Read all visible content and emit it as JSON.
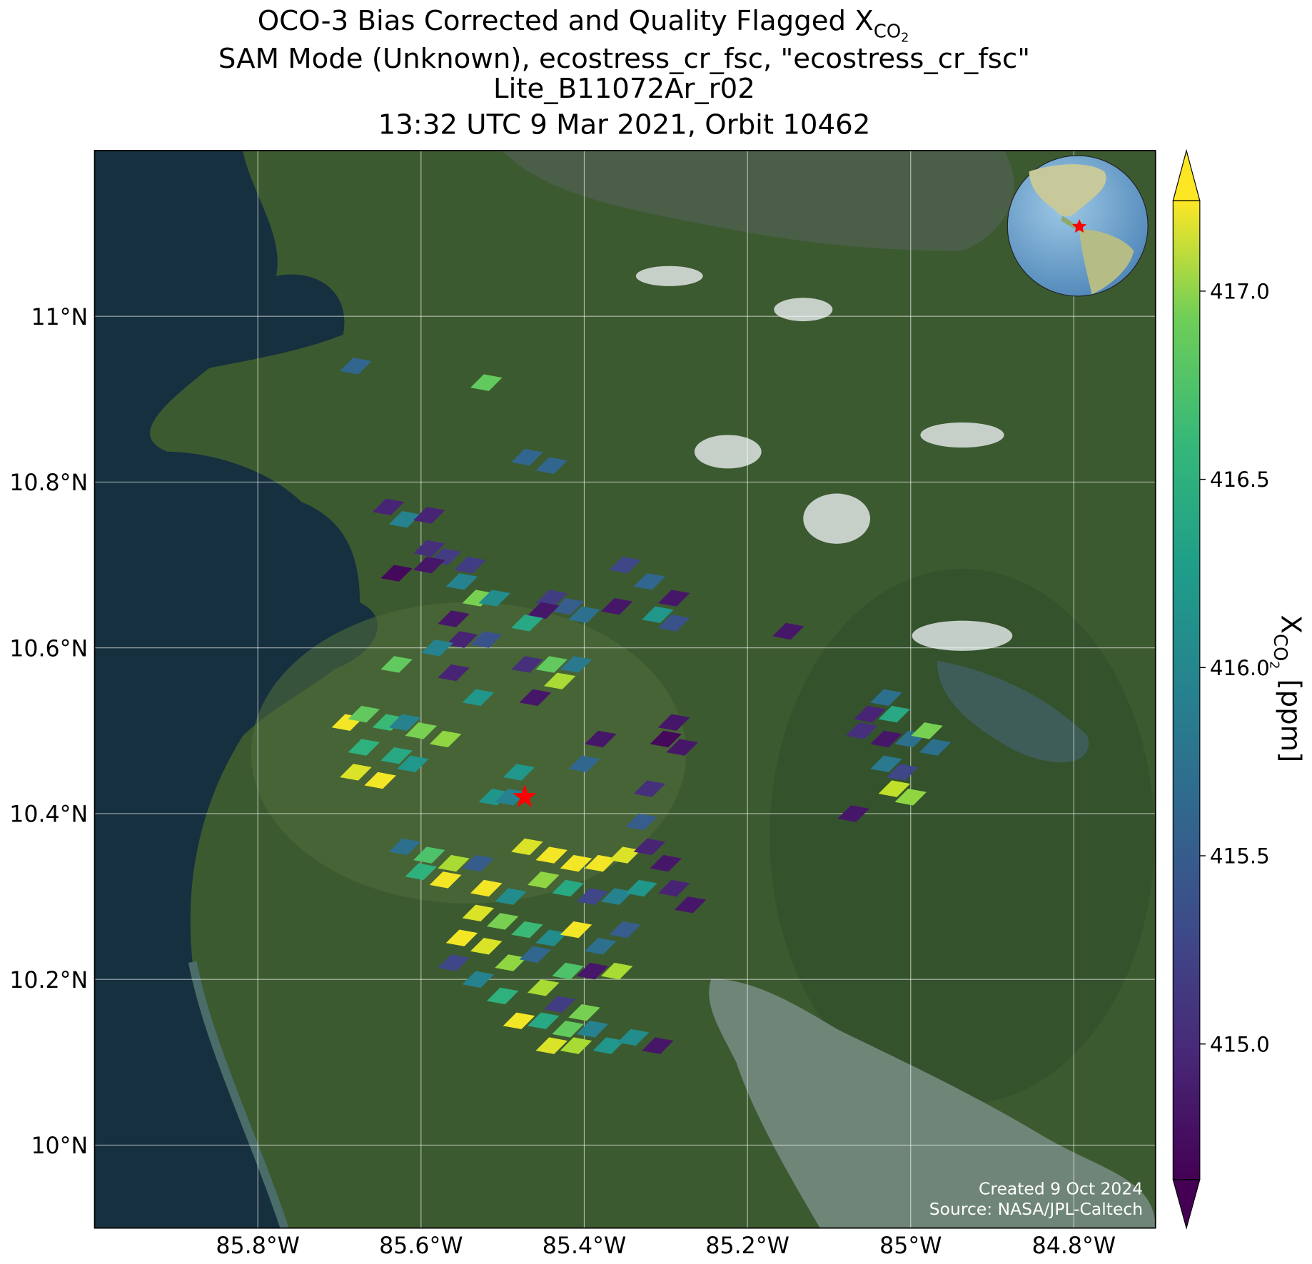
{
  "chart_data": {
    "type": "map",
    "title": {
      "main": "OCO-3 Bias Corrected and Quality Flagged X",
      "subscript": "CO",
      "subscript_digit": "2"
    },
    "subtitle_lines": [
      "SAM Mode (Unknown), ecostress_cr_fsc, \"ecostress_cr_fsc\"",
      "Lite_B11072Ar_r02",
      "13:32 UTC 9 Mar 2021, Orbit 10462"
    ],
    "xlim": [
      -86.0,
      -84.7
    ],
    "ylim": [
      9.9,
      11.2
    ],
    "xticks": [
      {
        "value": -85.8,
        "label": "85.8°W"
      },
      {
        "value": -85.6,
        "label": "85.6°W"
      },
      {
        "value": -85.4,
        "label": "85.4°W"
      },
      {
        "value": -85.2,
        "label": "85.2°W"
      },
      {
        "value": -85.0,
        "label": "85°W"
      },
      {
        "value": -84.8,
        "label": "84.8°W"
      }
    ],
    "yticks": [
      {
        "value": 10.0,
        "label": "10°N"
      },
      {
        "value": 10.2,
        "label": "10.2°N"
      },
      {
        "value": 10.4,
        "label": "10.4°N"
      },
      {
        "value": 10.6,
        "label": "10.6°N"
      },
      {
        "value": 10.8,
        "label": "10.8°N"
      },
      {
        "value": 11.0,
        "label": "11°N"
      }
    ],
    "grid": true,
    "target": {
      "lon": -85.473,
      "lat": 10.42,
      "color": "#ff0000"
    },
    "soundings": {
      "lon": [
        -85.68,
        -85.52,
        -85.47,
        -85.44,
        -85.64,
        -85.62,
        -85.59,
        -85.59,
        -85.57,
        -85.59,
        -85.63,
        -85.55,
        -85.53,
        -85.51,
        -85.54,
        -85.44,
        -85.42,
        -85.45,
        -85.4,
        -85.36,
        -85.35,
        -85.32,
        -85.31,
        -85.29,
        -85.29,
        -85.47,
        -85.56,
        -85.55,
        -85.52,
        -85.58,
        -85.15,
        -85.63,
        -85.56,
        -85.47,
        -85.44,
        -85.43,
        -85.41,
        -85.46,
        -85.53,
        -85.69,
        -85.67,
        -85.64,
        -85.67,
        -85.63,
        -85.68,
        -85.65,
        -85.61,
        -85.62,
        -85.6,
        -85.57,
        -85.29,
        -85.3,
        -85.28,
        -85.38,
        -85.4,
        -85.32,
        -85.48,
        -85.51,
        -85.49,
        -85.03,
        -85.05,
        -85.02,
        -85.06,
        -85.03,
        -85.0,
        -84.98,
        -84.97,
        -85.03,
        -85.01,
        -85.02,
        -85.0,
        -85.07,
        -85.62,
        -85.59,
        -85.56,
        -85.53,
        -85.6,
        -85.57,
        -85.52,
        -85.49,
        -85.47,
        -85.44,
        -85.41,
        -85.38,
        -85.35,
        -85.45,
        -85.42,
        -85.39,
        -85.36,
        -85.33,
        -85.33,
        -85.32,
        -85.3,
        -85.27,
        -85.29,
        -85.53,
        -85.5,
        -85.47,
        -85.44,
        -85.41,
        -85.38,
        -85.35,
        -85.55,
        -85.52,
        -85.49,
        -85.46,
        -85.42,
        -85.39,
        -85.36,
        -85.56,
        -85.53,
        -85.5,
        -85.45,
        -85.43,
        -85.48,
        -85.45,
        -85.42,
        -85.39,
        -85.4,
        -85.44,
        -85.41,
        -85.37,
        -85.34,
        -85.31
      ],
      "lat": [
        10.94,
        10.92,
        10.83,
        10.82,
        10.77,
        10.755,
        10.76,
        10.72,
        10.71,
        10.7,
        10.69,
        10.68,
        10.66,
        10.66,
        10.7,
        10.66,
        10.65,
        10.645,
        10.64,
        10.65,
        10.7,
        10.68,
        10.64,
        10.66,
        10.63,
        10.63,
        10.635,
        10.61,
        10.61,
        10.6,
        10.62,
        10.58,
        10.57,
        10.58,
        10.58,
        10.56,
        10.58,
        10.54,
        10.54,
        10.51,
        10.52,
        10.51,
        10.48,
        10.47,
        10.45,
        10.44,
        10.46,
        10.51,
        10.5,
        10.49,
        10.51,
        10.49,
        10.48,
        10.49,
        10.46,
        10.43,
        10.45,
        10.42,
        10.42,
        10.54,
        10.52,
        10.52,
        10.5,
        10.49,
        10.49,
        10.5,
        10.48,
        10.46,
        10.45,
        10.43,
        10.42,
        10.4,
        10.36,
        10.35,
        10.34,
        10.34,
        10.33,
        10.32,
        10.31,
        10.3,
        10.36,
        10.35,
        10.34,
        10.34,
        10.35,
        10.32,
        10.31,
        10.3,
        10.3,
        10.31,
        10.39,
        10.36,
        10.34,
        10.29,
        10.31,
        10.28,
        10.27,
        10.26,
        10.25,
        10.26,
        10.24,
        10.26,
        10.25,
        10.24,
        10.22,
        10.23,
        10.21,
        10.21,
        10.21,
        10.22,
        10.2,
        10.18,
        10.19,
        10.17,
        10.15,
        10.15,
        10.14,
        10.14,
        10.16,
        10.12,
        10.12,
        10.12,
        10.13,
        10.12
      ],
      "values": [
        415.5,
        416.6,
        415.5,
        415.5,
        414.9,
        415.8,
        414.9,
        415.0,
        415.1,
        414.8,
        414.7,
        415.8,
        416.7,
        415.9,
        415.1,
        415.1,
        415.4,
        414.8,
        415.6,
        414.8,
        415.2,
        415.5,
        416.0,
        414.8,
        415.3,
        416.2,
        414.8,
        414.9,
        415.3,
        415.8,
        414.8,
        416.6,
        414.9,
        415.0,
        416.6,
        416.9,
        415.7,
        414.8,
        416.0,
        417.2,
        416.6,
        416.4,
        416.3,
        416.2,
        417.1,
        417.2,
        416.0,
        415.8,
        416.7,
        416.8,
        414.8,
        414.7,
        414.8,
        414.8,
        415.5,
        415.0,
        416.0,
        416.0,
        415.8,
        415.6,
        414.9,
        416.2,
        415.0,
        414.8,
        415.6,
        416.7,
        415.6,
        415.7,
        415.2,
        417.0,
        416.8,
        414.8,
        415.6,
        416.5,
        416.9,
        415.4,
        416.3,
        417.2,
        417.2,
        415.9,
        417.1,
        417.2,
        417.2,
        417.2,
        417.1,
        416.8,
        416.2,
        415.2,
        415.8,
        416.0,
        415.4,
        414.9,
        414.8,
        414.8,
        414.9,
        417.1,
        416.7,
        416.4,
        415.9,
        417.2,
        415.6,
        415.4,
        417.2,
        417.1,
        416.8,
        415.5,
        416.5,
        414.8,
        416.9,
        415.2,
        415.8,
        416.3,
        416.9,
        415.1,
        417.2,
        416.2,
        416.6,
        415.8,
        416.7,
        417.1,
        416.9,
        416.0,
        415.9,
        414.8
      ]
    },
    "colorbar": {
      "label": "X",
      "label_subscript": "CO",
      "label_subscript_digit": "2",
      "label_unit": "[ppm]",
      "clim": [
        414.64,
        417.24
      ],
      "ticks": [
        {
          "value": 415.0,
          "label": "415.0"
        },
        {
          "value": 415.5,
          "label": "415.5"
        },
        {
          "value": 416.0,
          "label": "416.0"
        },
        {
          "value": 416.5,
          "label": "416.5"
        },
        {
          "value": 417.0,
          "label": "417.0"
        }
      ]
    },
    "annotations": [
      "Created 9 Oct 2024",
      "Source: NASA/JPL-Caltech"
    ]
  }
}
